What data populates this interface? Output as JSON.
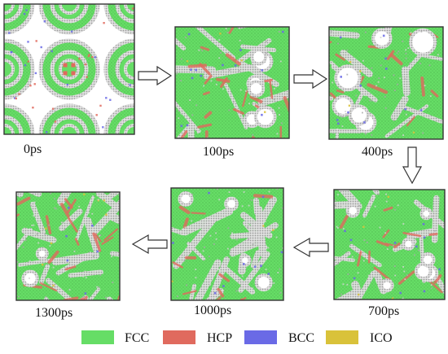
{
  "panels": [
    {
      "label": "0ps",
      "pattern": "initial-rings"
    },
    {
      "label": "100ps",
      "pattern": "lattice-voids"
    },
    {
      "label": "400ps",
      "pattern": "merging-voids"
    },
    {
      "label": "700ps",
      "pattern": "small-voids"
    },
    {
      "label": "1000ps",
      "pattern": "sparse-voids"
    },
    {
      "label": "1300ps",
      "pattern": "dense-mixed"
    }
  ],
  "arrows": [
    {
      "from": "0ps",
      "to": "100ps",
      "direction": "right"
    },
    {
      "from": "100ps",
      "to": "400ps",
      "direction": "right"
    },
    {
      "from": "400ps",
      "to": "700ps",
      "direction": "down"
    },
    {
      "from": "700ps",
      "to": "1000ps",
      "direction": "left"
    },
    {
      "from": "1000ps",
      "to": "1300ps",
      "direction": "left"
    }
  ],
  "legend": [
    {
      "label": "FCC",
      "color": "#66dd66"
    },
    {
      "label": "HCP",
      "color": "#e06a5e"
    },
    {
      "label": "BCC",
      "color": "#6a6ae6"
    },
    {
      "label": "ICO",
      "color": "#d9c23a"
    }
  ],
  "colors": {
    "fcc": "#66dd66",
    "hcp": "#e06a5e",
    "bcc": "#6a6ae6",
    "ico": "#d9c23a",
    "other": "#d2d2d2",
    "void": "#ffffff"
  }
}
